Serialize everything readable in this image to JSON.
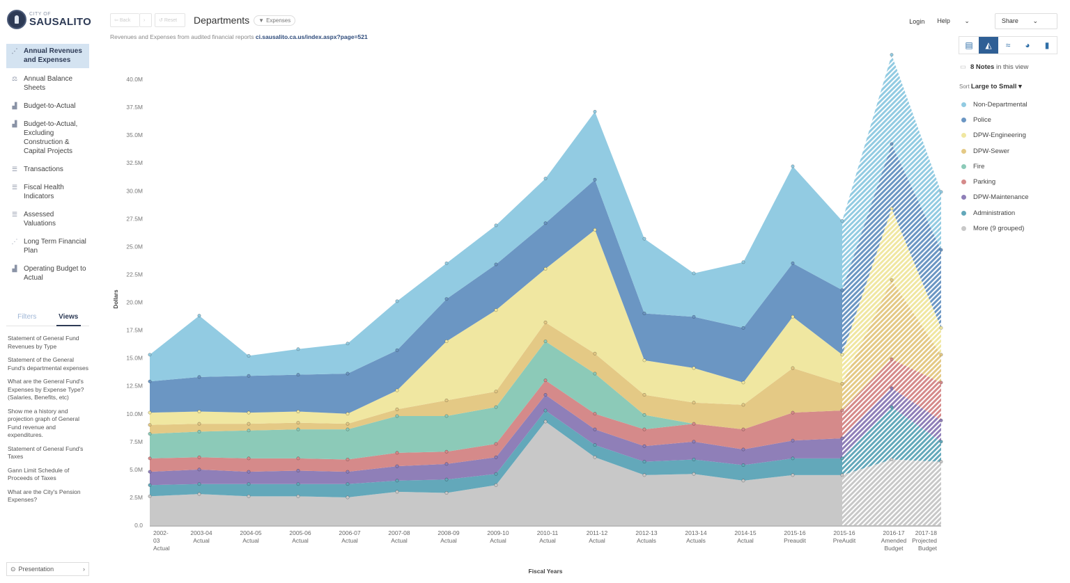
{
  "app": {
    "logo_small": "CITY OF",
    "logo_big": "SAUSALITO"
  },
  "sidebar": {
    "items": [
      {
        "label": "Annual Revenues and Expenses",
        "icon": "scatter-icon",
        "active": true
      },
      {
        "label": "Annual Balance Sheets",
        "icon": "scale-icon"
      },
      {
        "label": "Budget-to-Actual",
        "icon": "budget-chart-icon"
      },
      {
        "label": "Budget-to-Actual, Excluding Construction & Capital Projects",
        "icon": "budget-chart-icon"
      },
      {
        "label": "Transactions",
        "icon": "table-icon"
      },
      {
        "label": "Fiscal Health Indicators",
        "icon": "table-icon"
      },
      {
        "label": "Assessed Valuations",
        "icon": "table-icon"
      },
      {
        "label": "Long Term Financial Plan",
        "icon": "scatter-icon"
      },
      {
        "label": "Operating Budget to Actual",
        "icon": "budget-chart-icon"
      }
    ],
    "tabs": {
      "filters": "Filters",
      "views": "Views"
    },
    "views": [
      "Statement of General Fund Revenues by Type",
      "Statement of the General Fund's departmental expenses",
      "What are the General Fund's Expenses by Expense Type? (Salaries, Benefits, etc)",
      "Show me a history and projection graph of General Fund revenue and expenditures.",
      "Statement of General Fund's Taxes",
      "Gann Limit Schedule of Proceeds of Taxes",
      "What are the City's Pension Expenses?"
    ],
    "presentation": "Presentation"
  },
  "toolbar": {
    "back": "Back",
    "reset": "Reset",
    "title": "Departments",
    "filter_chip": "Expenses",
    "subtitle_text": "Revenues and Expenses from audited financial reports",
    "subtitle_link": "ci.sausalito.ca.us/index.aspx?page=521"
  },
  "topnav": {
    "login": "Login",
    "help": "Help",
    "share": "Share"
  },
  "chart_types": [
    {
      "name": "table-view-icon",
      "glyph": "▤"
    },
    {
      "name": "area-chart-icon",
      "glyph": "◭",
      "active": true
    },
    {
      "name": "line-chart-icon",
      "glyph": "≈"
    },
    {
      "name": "pie-chart-icon",
      "glyph": "◕"
    },
    {
      "name": "bar-chart-icon",
      "glyph": "▮"
    }
  ],
  "notes": {
    "count": "8 Notes",
    "suffix": "in this view"
  },
  "sort": {
    "prefix": "Sort",
    "value": "Large to Small ▾"
  },
  "chart_data": {
    "type": "area",
    "stacked": true,
    "xlabel": "Fiscal Years",
    "ylabel": "Dollars",
    "ylim": [
      0,
      40000000
    ],
    "yticks": [
      "0.0",
      "2.5M",
      "5.0M",
      "7.5M",
      "10.0M",
      "12.5M",
      "15.0M",
      "17.5M",
      "20.0M",
      "22.5M",
      "25.0M",
      "27.5M",
      "30.0M",
      "32.5M",
      "35.0M",
      "37.5M",
      "40.0M"
    ],
    "categories": [
      [
        "2002-",
        "03",
        "Actual"
      ],
      [
        "2003-04",
        "Actual"
      ],
      [
        "2004-05",
        "Actual"
      ],
      [
        "2005-06",
        "Actual"
      ],
      [
        "2006-07",
        "Actual"
      ],
      [
        "2007-08",
        "Actual"
      ],
      [
        "2008-09",
        "Actual"
      ],
      [
        "2009-10",
        "Actual"
      ],
      [
        "2010-11",
        "Actual"
      ],
      [
        "2011-12",
        "Actual"
      ],
      [
        "2012-13",
        "Actuals"
      ],
      [
        "2013-14",
        "Actuals"
      ],
      [
        "2014-15",
        "Actual"
      ],
      [
        "2015-16",
        "Preaudit"
      ],
      [
        "2015-16",
        "PreAudit"
      ],
      [
        "2016-17",
        "Amended",
        "Budget"
      ],
      [
        "2017-18",
        "Projected",
        "Budget"
      ]
    ],
    "projected_from_index": 14,
    "series_stack_order": "bottom-to-top",
    "series": [
      {
        "name": "More (9 grouped)",
        "color": "#c8c8c8",
        "values": [
          2.6,
          2.8,
          2.6,
          2.6,
          2.5,
          3.0,
          2.9,
          3.6,
          9.3,
          6.1,
          4.5,
          4.6,
          4.0,
          4.5,
          4.5,
          5.9,
          5.7
        ]
      },
      {
        "name": "Administration",
        "color": "#63a8ba",
        "values": [
          1.0,
          0.9,
          1.1,
          1.1,
          1.2,
          1.0,
          1.2,
          1.0,
          1.0,
          1.1,
          1.2,
          1.3,
          1.4,
          1.5,
          1.5,
          4.7,
          1.8
        ]
      },
      {
        "name": "DPW-Maintenance",
        "color": "#8f7fb8",
        "values": [
          1.2,
          1.3,
          1.1,
          1.2,
          1.1,
          1.3,
          1.4,
          1.5,
          1.4,
          1.4,
          1.4,
          1.6,
          1.4,
          1.6,
          1.8,
          1.7,
          1.9
        ]
      },
      {
        "name": "Parking",
        "color": "#d58a8a",
        "values": [
          1.2,
          1.1,
          1.2,
          1.1,
          1.1,
          1.2,
          1.1,
          1.2,
          1.3,
          1.4,
          1.5,
          1.6,
          1.8,
          2.5,
          2.5,
          2.6,
          3.4
        ]
      },
      {
        "name": "Fire",
        "color": "#8ccab8",
        "values": [
          2.2,
          2.3,
          2.5,
          2.6,
          2.7,
          3.3,
          3.2,
          3.3,
          3.5,
          3.6,
          1.3,
          0.0,
          0.0,
          0.0,
          0.0,
          0.0,
          0.0
        ]
      },
      {
        "name": "DPW-Sewer",
        "color": "#e4c985",
        "values": [
          0.8,
          0.7,
          0.6,
          0.6,
          0.5,
          0.6,
          1.4,
          1.4,
          1.7,
          1.8,
          1.8,
          1.9,
          2.2,
          4.0,
          2.4,
          7.1,
          2.5
        ]
      },
      {
        "name": "DPW-Engineering",
        "color": "#f0e7a1",
        "values": [
          1.1,
          1.1,
          1.0,
          1.0,
          0.9,
          1.7,
          5.3,
          7.3,
          4.8,
          11.1,
          3.1,
          3.1,
          2.0,
          4.6,
          2.6,
          6.4,
          2.4
        ]
      },
      {
        "name": "Police",
        "color": "#6b96c3",
        "values": [
          2.8,
          3.1,
          3.3,
          3.3,
          3.6,
          3.6,
          3.8,
          4.1,
          4.1,
          4.5,
          4.2,
          4.6,
          4.9,
          4.8,
          5.8,
          5.8,
          7.0
        ]
      },
      {
        "name": "Non-Departmental",
        "color": "#92cbe2",
        "values": [
          2.4,
          5.5,
          1.8,
          2.3,
          2.7,
          4.4,
          3.2,
          3.5,
          4.0,
          6.1,
          6.7,
          3.9,
          5.9,
          8.7,
          6.2,
          8.0,
          5.2
        ]
      }
    ],
    "value_unit": "millions of dollars"
  }
}
